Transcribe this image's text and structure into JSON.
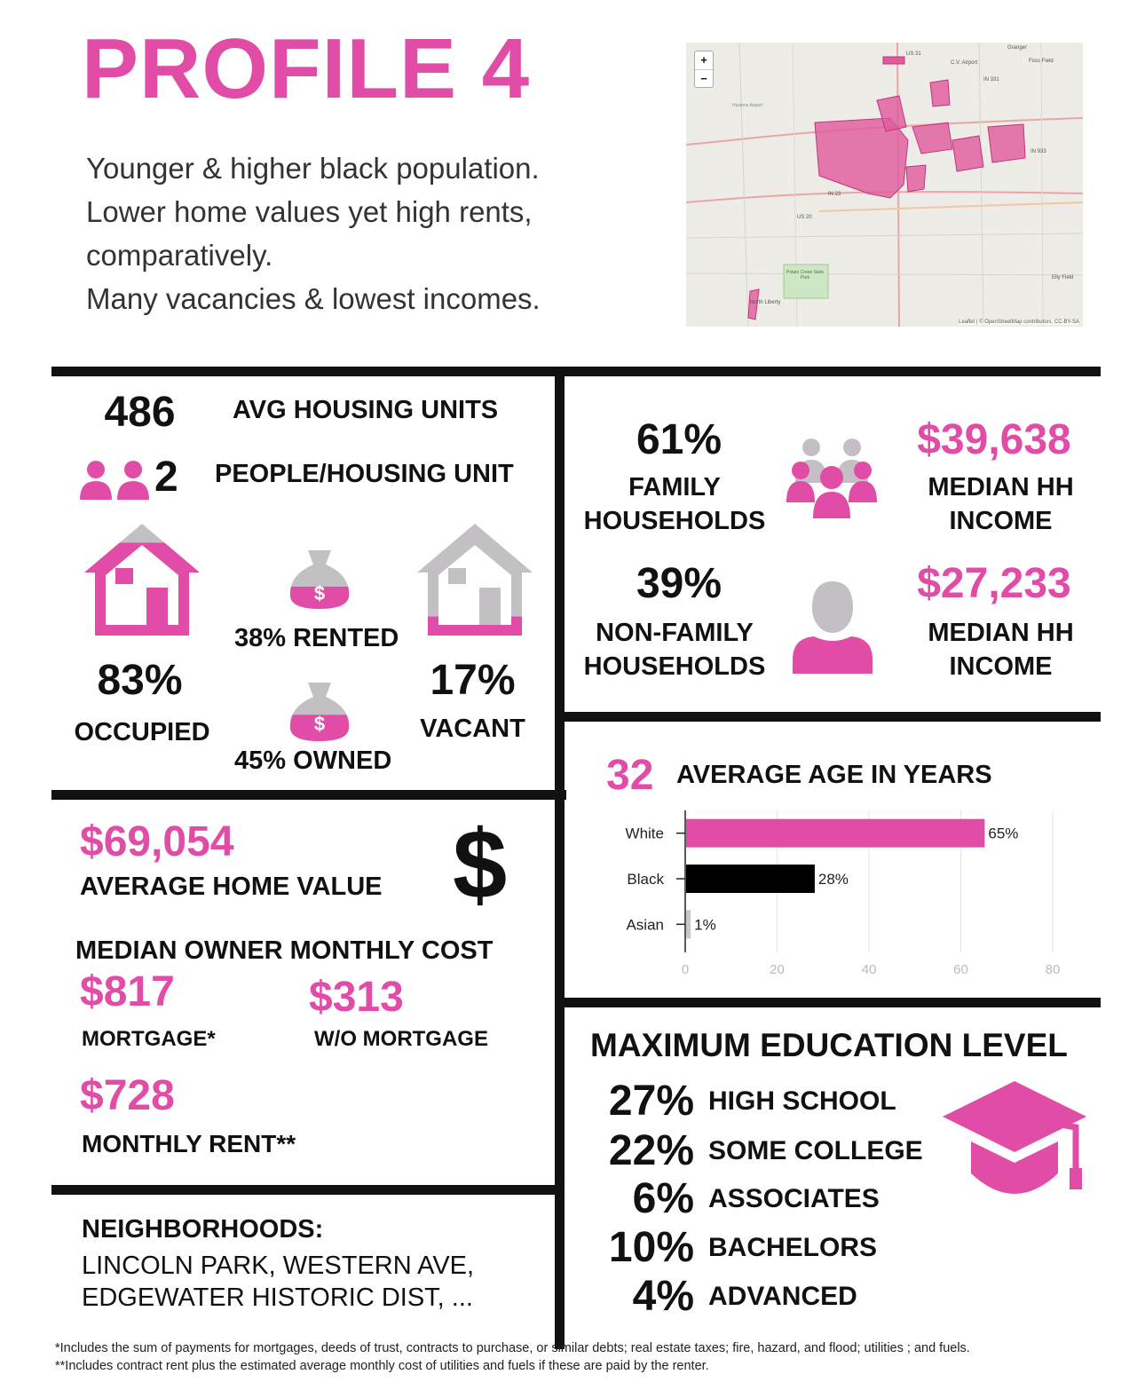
{
  "header": {
    "title": "PROFILE 4",
    "description": [
      "Younger & higher black population.",
      "Lower home values yet high rents,",
      "comparatively.",
      "Many vacancies & lowest incomes."
    ]
  },
  "map": {
    "zoom_in": "+",
    "zoom_out": "−",
    "attribution": "Leaflet | © OpenStreetMap contributors, CC-BY-SA",
    "labels": [
      "US 31",
      "US 20",
      "IN 23",
      "IN 933",
      "IN 331",
      "Granger",
      "Foss Field",
      "C.V. Airport",
      "Elly Field",
      "North Liberty",
      "Potato Creek State Park",
      "Hustons Airport"
    ]
  },
  "housing": {
    "avg_units_value": "486",
    "avg_units_label": "AVG HOUSING UNITS",
    "people_value": "2",
    "people_label": "PEOPLE/HOUSING UNIT",
    "occupied_value": "83%",
    "occupied_label": "OCCUPIED",
    "occupied_fill": 0.83,
    "rented_label": "38% RENTED",
    "owned_label": "45% OWNED",
    "rented_fill": 0.38,
    "owned_fill": 0.45,
    "vacant_value": "17%",
    "vacant_label": "VACANT",
    "vacant_fill": 0.17
  },
  "households": {
    "family_value": "61%",
    "family_label_1": "FAMILY",
    "family_label_2": "HOUSEHOLDS",
    "family_income": "$39,638",
    "nonfamily_value": "39%",
    "nonfamily_label_1": "NON-FAMILY",
    "nonfamily_label_2": "HOUSEHOLDS",
    "nonfamily_income": "$27,233",
    "income_label_1": "MEDIAN HH",
    "income_label_2": "INCOME"
  },
  "costs": {
    "home_value": "$69,054",
    "home_value_label": "AVERAGE HOME VALUE",
    "dollar_symbol": "$",
    "monthly_heading": "MEDIAN OWNER MONTHLY COST",
    "mortgage_value": "$817",
    "mortgage_label": "MORTGAGE*",
    "wo_mortgage_value": "$313",
    "wo_mortgage_label": "W/O MORTGAGE",
    "rent_value": "$728",
    "rent_label": "MONTHLY RENT**"
  },
  "neighborhoods": {
    "heading": "NEIGHBORHOODS:",
    "line1": "LINCOLN PARK, WESTERN AVE,",
    "line2": "EDGEWATER HISTORIC DIST, ..."
  },
  "age": {
    "value": "32",
    "label": "AVERAGE AGE IN YEARS"
  },
  "chart_data": {
    "type": "bar",
    "orientation": "horizontal",
    "categories": [
      "White",
      "Black",
      "Asian"
    ],
    "values": [
      65,
      28,
      1
    ],
    "data_labels": [
      "65%",
      "28%",
      "1%"
    ],
    "colors": [
      "#e04ca6",
      "#000000",
      "#c8c8c8"
    ],
    "xlim": [
      0,
      80
    ],
    "xticks": [
      "0",
      "20",
      "40",
      "60",
      "80"
    ],
    "grid": true
  },
  "education": {
    "heading": "MAXIMUM EDUCATION LEVEL",
    "levels": [
      {
        "pct": "27%",
        "label": "HIGH SCHOOL"
      },
      {
        "pct": "22%",
        "label": "SOME COLLEGE"
      },
      {
        "pct": "6%",
        "label": "ASSOCIATES"
      },
      {
        "pct": "10%",
        "label": "BACHELORS"
      },
      {
        "pct": "4%",
        "label": "ADVANCED"
      }
    ]
  },
  "footnotes": {
    "note1": "*Includes the sum of payments for mortgages, deeds of trust, contracts to purchase, or similar debts; real estate taxes; fire, hazard, and flood; utilities ; and fuels.",
    "note2": "**Includes contract rent plus the estimated average monthly cost of utilities and fuels if these are paid by the renter."
  },
  "colors": {
    "accent": "#e04ca6",
    "gray": "#c3bfc4",
    "black": "#111111"
  }
}
